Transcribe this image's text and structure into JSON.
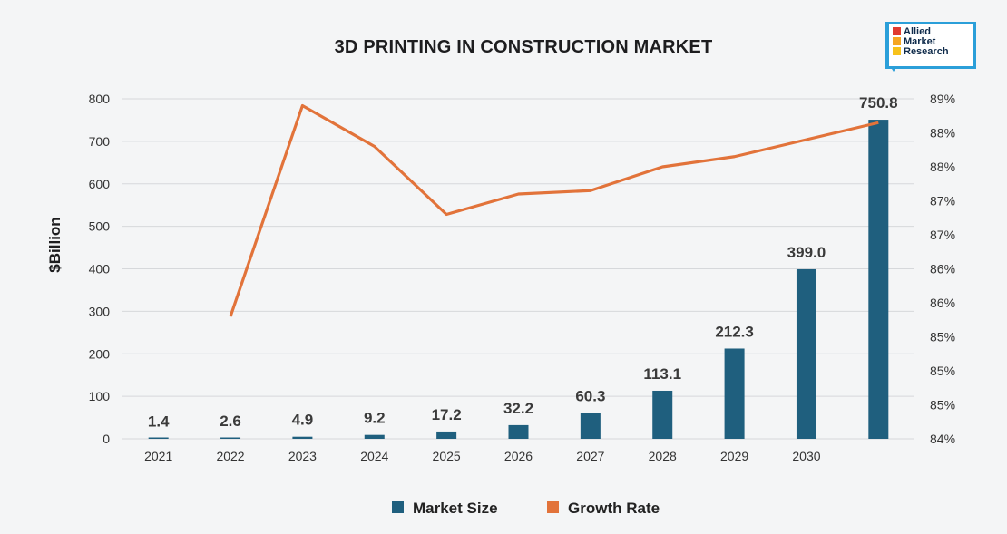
{
  "chart_data": {
    "type": "bar",
    "title": "3D PRINTING IN CONSTRUCTION MARKET",
    "ylabel": "$Billion",
    "xlabel": "",
    "categories": [
      "2021",
      "2022",
      "2023",
      "2024",
      "2025",
      "2026",
      "2027",
      "2028",
      "2029",
      "2030",
      ""
    ],
    "ylim": [
      0,
      800
    ],
    "y_ticks": [
      "0",
      "100",
      "200",
      "300",
      "400",
      "500",
      "600",
      "700",
      "800"
    ],
    "y2_ticks": [
      "84%",
      "85%",
      "85%",
      "85%",
      "86%",
      "86%",
      "87%",
      "87%",
      "88%",
      "88%",
      "89%"
    ],
    "y2lim": [
      84,
      89
    ],
    "grid": true,
    "legend_position": "bottom",
    "series": [
      {
        "name": "Market Size",
        "type": "bar",
        "axis": "left",
        "color": "#1f5f7e",
        "values": [
          1.4,
          2.6,
          4.9,
          9.2,
          17.2,
          32.2,
          60.3,
          113.1,
          212.3,
          399.0,
          750.8
        ],
        "labels": [
          "1.4",
          "2.6",
          "4.9",
          "9.2",
          "17.2",
          "32.2",
          "60.3",
          "113.1",
          "212.3",
          "399.0",
          "750.8"
        ]
      },
      {
        "name": "Growth Rate",
        "type": "line",
        "axis": "right",
        "color": "#e2733a",
        "values": [
          null,
          85.8,
          88.9,
          88.3,
          87.3,
          87.6,
          87.65,
          88.0,
          88.15,
          88.4,
          88.65
        ]
      }
    ]
  },
  "brand": {
    "line1": "Allied",
    "line2": "Market",
    "line3": "Research",
    "colors": [
      "#e03a2f",
      "#f5a623",
      "#f7c21b"
    ]
  }
}
